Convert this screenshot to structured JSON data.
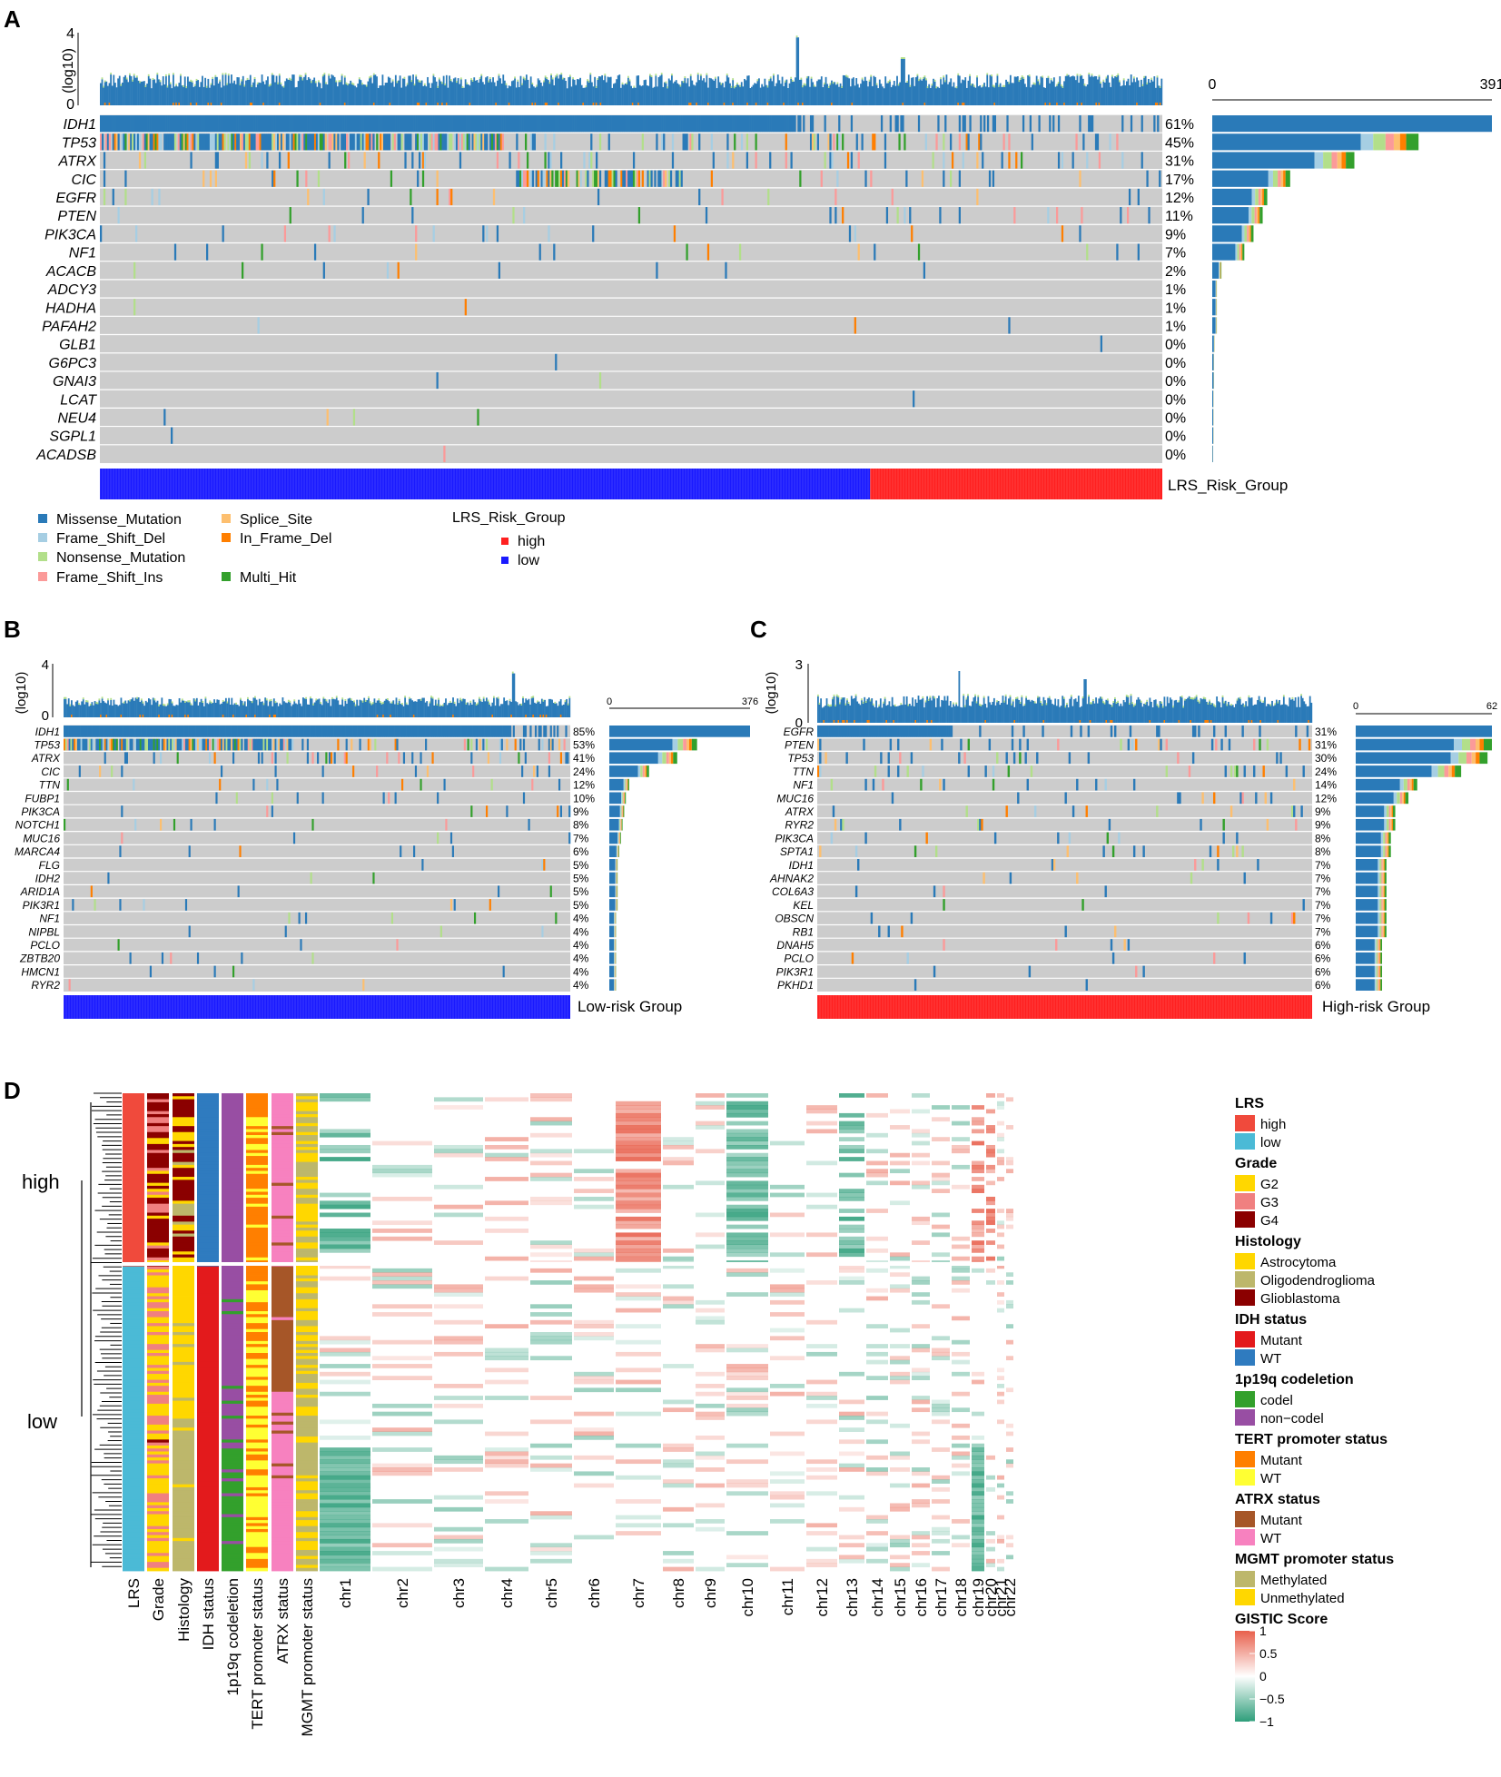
{
  "colors": {
    "missense": "#2a7ab8",
    "frame_shift_del": "#a6cee3",
    "nonsense": "#b2df8a",
    "frame_shift_ins": "#fb9a99",
    "splice": "#fdbf6f",
    "in_frame_del": "#ff7f00",
    "multi_hit": "#33a02c",
    "grey": "#cccccc",
    "high": "#ff2020",
    "low": "#1a1aff",
    "lrs_high": "#f04a3c",
    "lrs_low": "#4bbad6",
    "g2": "#ffd700",
    "g3": "#f08080",
    "g4": "#8b0000",
    "astro": "#ffd700",
    "oligo": "#bdb76b",
    "glio": "#8b0000",
    "idh_mut": "#e31a1c",
    "idh_wt": "#2f7bbf",
    "codel": "#33a02c",
    "noncodel": "#984ea3",
    "tert_mut": "#ff7f00",
    "tert_wt": "#ffff33",
    "atrx_mut": "#a65628",
    "atrx_wt": "#f781bf",
    "mgmt_meth": "#bdb76b",
    "mgmt_unmeth": "#ffd700",
    "gistic_pos": "#e8604c",
    "gistic_neg": "#2e9e7a"
  },
  "panel_labels": {
    "a": "A",
    "b": "B",
    "c": "C",
    "d": "D"
  },
  "panelA": {
    "tmb_label": "(log10)",
    "tmb_ticks": [
      "4",
      "0"
    ],
    "bar_axis": [
      "0",
      "391"
    ],
    "genes": [
      "IDH1",
      "TP53",
      "ATRX",
      "CIC",
      "EGFR",
      "PTEN",
      "PIK3CA",
      "NF1",
      "ACACB",
      "ADCY3",
      "HADHA",
      "PAFAH2",
      "GLB1",
      "G6PC3",
      "GNAI3",
      "LCAT",
      "NEU4",
      "SGPL1",
      "ACADSB"
    ],
    "percents": [
      "61%",
      "45%",
      "31%",
      "17%",
      "12%",
      "11%",
      "9%",
      "7%",
      "2%",
      "1%",
      "1%",
      "1%",
      "0%",
      "0%",
      "0%",
      "0%",
      "0%",
      "0%",
      "0%"
    ],
    "freq": [
      0.61,
      0.45,
      0.31,
      0.17,
      0.12,
      0.11,
      0.09,
      0.07,
      0.02,
      0.01,
      0.01,
      0.01,
      0.005,
      0.004,
      0.004,
      0.003,
      0.003,
      0.003,
      0.002
    ],
    "group_label": "LRS_Risk_Group",
    "legend_items": [
      "Missense_Mutation",
      "Frame_Shift_Del",
      "Nonsense_Mutation",
      "Frame_Shift_Ins",
      "Splice_Site",
      "In_Frame_Del",
      "Multi_Hit"
    ],
    "group_legend_title": "LRS_Risk_Group",
    "group_legend_items": [
      "high",
      "low"
    ]
  },
  "panelB": {
    "tmb_label": "(log10)",
    "tmb_ticks": [
      "4",
      "0"
    ],
    "bar_axis": [
      "0",
      "376"
    ],
    "genes": [
      "IDH1",
      "TP53",
      "ATRX",
      "CIC",
      "TTN",
      "FUBP1",
      "PIK3CA",
      "NOTCH1",
      "MUC16",
      "MARCA4",
      "FLG",
      "IDH2",
      "ARID1A",
      "PIK3R1",
      "NF1",
      "NIPBL",
      "PCLO",
      "ZBTB20",
      "HMCN1",
      "RYR2"
    ],
    "percents": [
      "85%",
      "53%",
      "41%",
      "24%",
      "12%",
      "10%",
      "9%",
      "8%",
      "7%",
      "6%",
      "5%",
      "5%",
      "5%",
      "5%",
      "4%",
      "4%",
      "4%",
      "4%",
      "4%",
      "4%"
    ],
    "freq": [
      0.85,
      0.53,
      0.41,
      0.24,
      0.12,
      0.1,
      0.09,
      0.08,
      0.07,
      0.06,
      0.05,
      0.05,
      0.05,
      0.05,
      0.04,
      0.04,
      0.04,
      0.04,
      0.04,
      0.04
    ],
    "group_label": "Low-risk Group"
  },
  "panelC": {
    "tmb_label": "(log10)",
    "tmb_ticks": [
      "3",
      "0"
    ],
    "bar_axis": [
      "0",
      "62"
    ],
    "genes": [
      "EGFR",
      "PTEN",
      "TP53",
      "TTN",
      "NF1",
      "MUC16",
      "ATRX",
      "RYR2",
      "PIK3CA",
      "SPTA1",
      "IDH1",
      "AHNAK2",
      "COL6A3",
      "KEL",
      "OBSCN",
      "RB1",
      "DNAH5",
      "PCLO",
      "PIK3R1",
      "PKHD1"
    ],
    "percents": [
      "31%",
      "31%",
      "30%",
      "24%",
      "14%",
      "12%",
      "9%",
      "9%",
      "8%",
      "8%",
      "7%",
      "7%",
      "7%",
      "7%",
      "7%",
      "7%",
      "6%",
      "6%",
      "6%",
      "6%"
    ],
    "freq": [
      0.31,
      0.31,
      0.3,
      0.24,
      0.14,
      0.12,
      0.09,
      0.09,
      0.08,
      0.08,
      0.07,
      0.07,
      0.07,
      0.07,
      0.07,
      0.07,
      0.06,
      0.06,
      0.06,
      0.06
    ],
    "group_label": "High-risk Group"
  },
  "panelD": {
    "row_labels": {
      "high": "high",
      "low": "low"
    },
    "track_labels": [
      "LRS",
      "Grade",
      "Histology",
      "IDH status",
      "1p19q codeletion",
      "TERT promoter status",
      "ATRX status",
      "MGMT promoter status"
    ],
    "chromosomes": [
      "chr1",
      "chr2",
      "chr3",
      "chr4",
      "chr5",
      "chr6",
      "chr7",
      "chr8",
      "chr9",
      "chr10",
      "chr11",
      "chr12",
      "chr13",
      "chr14",
      "chr15",
      "chr16",
      "chr17",
      "chr18",
      "chr19",
      "chr20",
      "chr21",
      "chr22"
    ],
    "legend": [
      {
        "title": "LRS",
        "items": [
          "high",
          "low"
        ],
        "colors": [
          "lrs_high",
          "lrs_low"
        ]
      },
      {
        "title": "Grade",
        "items": [
          "G2",
          "G3",
          "G4"
        ],
        "colors": [
          "g2",
          "g3",
          "g4"
        ]
      },
      {
        "title": "Histology",
        "items": [
          "Astrocytoma",
          "Oligodendroglioma",
          "Glioblastoma"
        ],
        "colors": [
          "astro",
          "oligo",
          "glio"
        ]
      },
      {
        "title": "IDH status",
        "items": [
          "Mutant",
          "WT"
        ],
        "colors": [
          "idh_mut",
          "idh_wt"
        ]
      },
      {
        "title": "1p19q codeletion",
        "items": [
          "codel",
          "non−codel"
        ],
        "colors": [
          "codel",
          "noncodel"
        ]
      },
      {
        "title": "TERT promoter status",
        "items": [
          "Mutant",
          "WT"
        ],
        "colors": [
          "tert_mut",
          "tert_wt"
        ]
      },
      {
        "title": "ATRX status",
        "items": [
          "Mutant",
          "WT"
        ],
        "colors": [
          "atrx_mut",
          "atrx_wt"
        ]
      },
      {
        "title": "MGMT promoter status",
        "items": [
          "Methylated",
          "Unmethylated"
        ],
        "colors": [
          "mgmt_meth",
          "mgmt_unmeth"
        ]
      }
    ],
    "gistic_title": "GISTIC Score",
    "gistic_ticks": [
      "1",
      "0.5",
      "0",
      "−0.5",
      "−1"
    ]
  }
}
